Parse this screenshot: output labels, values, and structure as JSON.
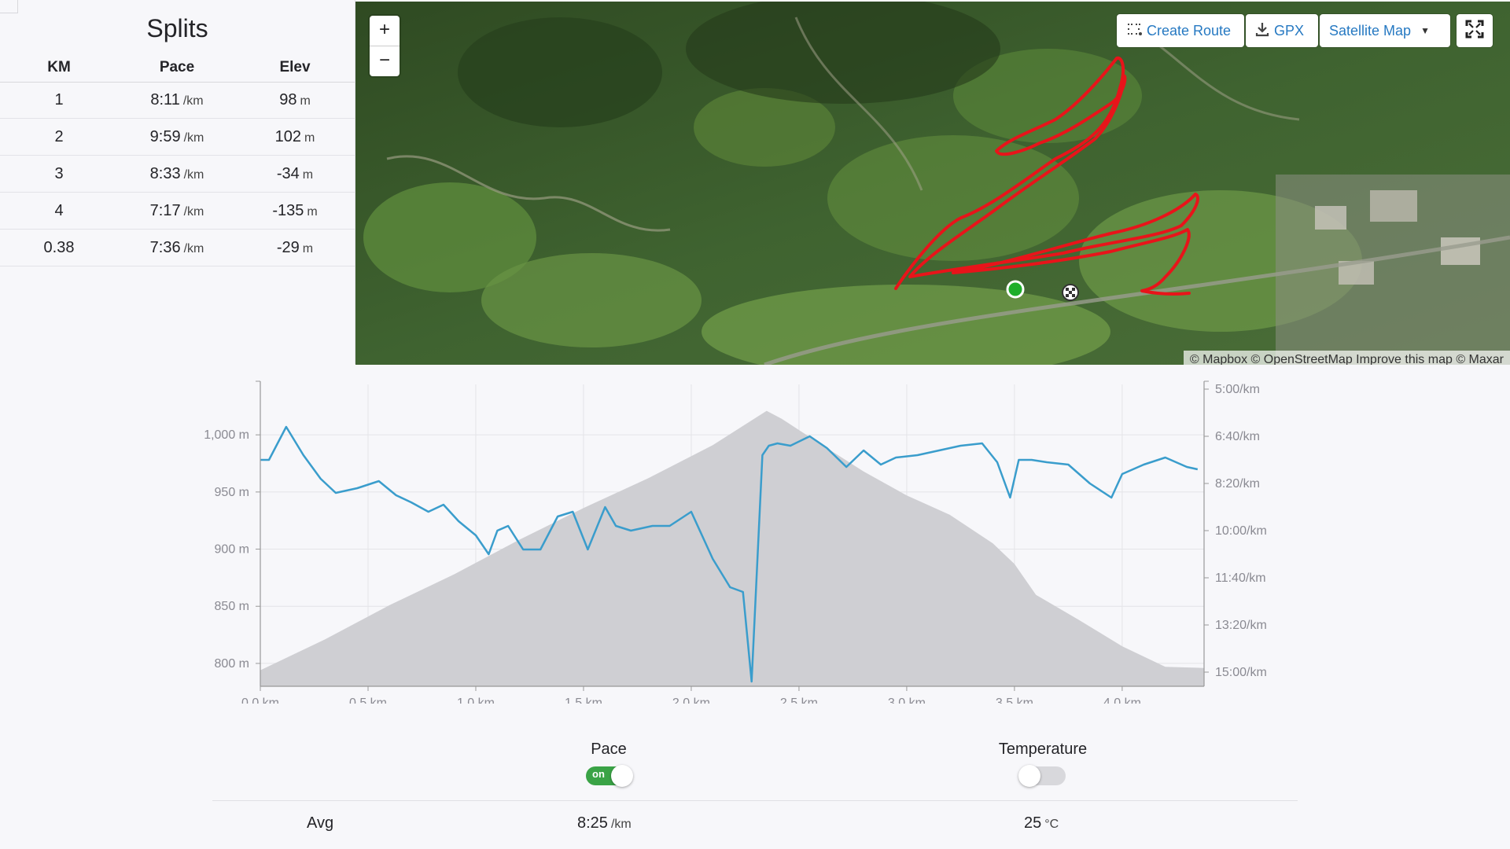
{
  "splits": {
    "title": "Splits",
    "headers": [
      "KM",
      "Pace",
      "Elev"
    ],
    "rows": [
      {
        "km": "1",
        "pace": "8:11",
        "pace_unit": "/km",
        "elev": "98",
        "elev_unit": "m"
      },
      {
        "km": "2",
        "pace": "9:59",
        "pace_unit": "/km",
        "elev": "102",
        "elev_unit": "m"
      },
      {
        "km": "3",
        "pace": "8:33",
        "pace_unit": "/km",
        "elev": "-34",
        "elev_unit": "m"
      },
      {
        "km": "4",
        "pace": "7:17",
        "pace_unit": "/km",
        "elev": "-135",
        "elev_unit": "m"
      },
      {
        "km": "0.38",
        "pace": "7:36",
        "pace_unit": "/km",
        "elev": "-29",
        "elev_unit": "m"
      }
    ]
  },
  "map": {
    "zoom_in": "+",
    "zoom_out": "−",
    "create_route": "Create Route",
    "gpx": "GPX",
    "map_type": "Satellite Map",
    "attribution": "© Mapbox © OpenStreetMap Improve this map © Maxar",
    "icons": {
      "create_route": "route-icon",
      "gpx": "download-icon",
      "map_type": "caret-down-icon",
      "fullscreen": "fullscreen-icon"
    },
    "colors": {
      "route": "#e8141a",
      "start": "#1fae2a",
      "end": "#ffffff"
    }
  },
  "chart_data": {
    "type": "area",
    "x_unit": "km",
    "x_ticks": [
      "0.0 km",
      "0.5 km",
      "1.0 km",
      "1.5 km",
      "2.0 km",
      "2.5 km",
      "3.0 km",
      "3.5 km",
      "4.0 km"
    ],
    "y_left_ticks": [
      "1,000 m",
      "950 m",
      "900 m",
      "850 m",
      "800 m"
    ],
    "y_right_ticks": [
      "5:00/km",
      "6:40/km",
      "8:20/km",
      "10:00/km",
      "11:40/km",
      "13:20/km",
      "15:00/km"
    ],
    "xlim": [
      0,
      4.38
    ],
    "ylim_left": [
      780,
      1040
    ],
    "ylim_right_sec": [
      300,
      930
    ],
    "series": [
      {
        "name": "Elevation",
        "color": "#cfcfd3",
        "x": [
          0,
          0.3,
          0.6,
          0.9,
          1.2,
          1.5,
          1.8,
          2.1,
          2.35,
          2.42,
          2.6,
          2.8,
          3.0,
          3.2,
          3.4,
          3.5,
          3.6,
          3.8,
          4.0,
          4.2,
          4.38
        ],
        "y": [
          794,
          821,
          851,
          878,
          908,
          936,
          962,
          991,
          1021,
          1014,
          992,
          968,
          947,
          930,
          905,
          887,
          860,
          838,
          815,
          797,
          796
        ]
      },
      {
        "name": "Pace",
        "color": "#3a9dcc",
        "x": [
          0,
          0.04,
          0.12,
          0.2,
          0.28,
          0.35,
          0.45,
          0.55,
          0.63,
          0.7,
          0.78,
          0.85,
          0.92,
          1.0,
          1.06,
          1.1,
          1.15,
          1.22,
          1.3,
          1.38,
          1.45,
          1.52,
          1.6,
          1.65,
          1.72,
          1.82,
          1.9,
          2.0,
          2.1,
          2.18,
          2.24,
          2.28,
          2.33,
          2.36,
          2.4,
          2.46,
          2.55,
          2.63,
          2.72,
          2.8,
          2.88,
          2.95,
          3.05,
          3.15,
          3.25,
          3.35,
          3.42,
          3.48,
          3.52,
          3.58,
          3.65,
          3.75,
          3.85,
          3.95,
          4.0,
          4.1,
          4.2,
          4.3,
          4.35
        ],
        "y_sec": [
          450,
          450,
          380,
          440,
          490,
          520,
          510,
          495,
          525,
          540,
          560,
          545,
          580,
          610,
          650,
          600,
          590,
          640,
          640,
          570,
          560,
          640,
          550,
          590,
          600,
          590,
          590,
          560,
          660,
          720,
          730,
          920,
          440,
          420,
          415,
          420,
          400,
          425,
          465,
          430,
          460,
          445,
          440,
          430,
          420,
          415,
          455,
          530,
          450,
          450,
          455,
          460,
          500,
          530,
          480,
          460,
          445,
          465,
          470
        ]
      }
    ],
    "markers": {
      "start_x": 0,
      "end_x": 4.38
    }
  },
  "toggles": {
    "pace": {
      "label": "Pace",
      "state": "on"
    },
    "temperature": {
      "label": "Temperature",
      "state": "off"
    }
  },
  "averages": {
    "label": "Avg",
    "pace": "8:25",
    "pace_unit": "/km",
    "temperature": "25",
    "temperature_unit": "°C"
  }
}
